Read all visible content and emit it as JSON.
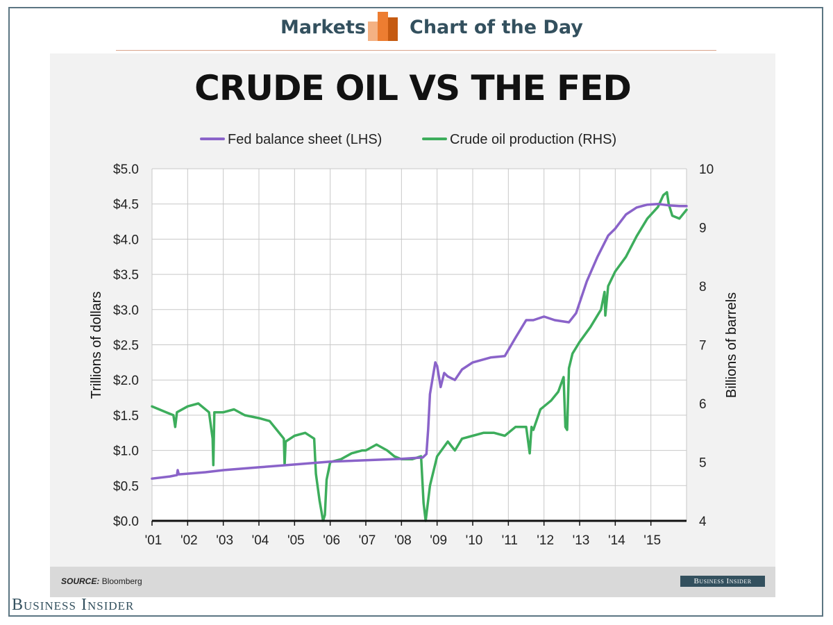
{
  "header": {
    "left_label": "Markets",
    "right_label": "Chart of the Day"
  },
  "footer": {
    "source_label": "SOURCE:",
    "source_text": "Bloomberg",
    "badge": "Business Insider",
    "brand": "Business Insider"
  },
  "colors": {
    "fed": "#8a63c9",
    "oil": "#3dad5c",
    "header_text": "#33505e",
    "logo_light": "#f4b183",
    "logo_mid": "#ed7d31",
    "logo_dark": "#c55a11"
  },
  "chart_data": {
    "type": "line",
    "title": "CRUDE OIL VS THE FED",
    "ylabel": "Trillions of dollars",
    "y2label": "Billions of barrels",
    "ylim": [
      0,
      5
    ],
    "y2lim": [
      4,
      10
    ],
    "xlim": [
      2001,
      2016
    ],
    "yticks": [
      "$0.0",
      "$0.5",
      "$1.0",
      "$1.5",
      "$2.0",
      "$2.5",
      "$3.0",
      "$3.5",
      "$4.0",
      "$4.5",
      "$5.0"
    ],
    "y2ticks": [
      "4",
      "5",
      "6",
      "7",
      "8",
      "9",
      "10"
    ],
    "xticks": [
      "'01",
      "'02",
      "'03",
      "'04",
      "'05",
      "'06",
      "'07",
      "'08",
      "'09",
      "'10",
      "'11",
      "'12",
      "'13",
      "'14",
      "'15"
    ],
    "grid": true,
    "legend_position": "top",
    "series": [
      {
        "name": "Fed balance sheet (LHS)",
        "axis": "left",
        "x": [
          2001.0,
          2001.5,
          2001.7,
          2001.72,
          2001.75,
          2002.0,
          2002.5,
          2003.0,
          2004.0,
          2005.0,
          2006.0,
          2007.0,
          2008.0,
          2008.6,
          2008.7,
          2008.75,
          2008.8,
          2008.9,
          2008.95,
          2009.0,
          2009.1,
          2009.2,
          2009.3,
          2009.5,
          2009.7,
          2010.0,
          2010.5,
          2010.9,
          2011.2,
          2011.5,
          2011.7,
          2012.0,
          2012.3,
          2012.7,
          2012.9,
          2013.2,
          2013.5,
          2013.8,
          2014.0,
          2014.3,
          2014.6,
          2014.9,
          2015.2,
          2015.5,
          2015.8,
          2016.0
        ],
        "values": [
          0.6,
          0.63,
          0.65,
          0.72,
          0.66,
          0.67,
          0.69,
          0.72,
          0.76,
          0.8,
          0.84,
          0.86,
          0.88,
          0.9,
          0.95,
          1.3,
          1.8,
          2.1,
          2.25,
          2.2,
          1.9,
          2.1,
          2.05,
          2.0,
          2.15,
          2.25,
          2.32,
          2.34,
          2.6,
          2.85,
          2.85,
          2.9,
          2.85,
          2.82,
          2.95,
          3.4,
          3.75,
          4.05,
          4.15,
          4.35,
          4.45,
          4.49,
          4.5,
          4.48,
          4.47,
          4.47
        ]
      },
      {
        "name": "Crude oil production (RHS)",
        "axis": "right",
        "x": [
          2001.0,
          2001.2,
          2001.4,
          2001.6,
          2001.65,
          2001.7,
          2002.0,
          2002.3,
          2002.6,
          2002.7,
          2002.72,
          2002.75,
          2003.0,
          2003.3,
          2003.6,
          2004.0,
          2004.3,
          2004.5,
          2004.7,
          2004.72,
          2004.75,
          2005.0,
          2005.3,
          2005.55,
          2005.6,
          2005.7,
          2005.8,
          2005.85,
          2005.9,
          2006.0,
          2006.3,
          2006.6,
          2006.9,
          2007.0,
          2007.3,
          2007.6,
          2007.8,
          2008.0,
          2008.3,
          2008.55,
          2008.62,
          2008.68,
          2008.8,
          2009.0,
          2009.3,
          2009.5,
          2009.7,
          2010.0,
          2010.3,
          2010.6,
          2010.9,
          2011.2,
          2011.5,
          2011.6,
          2011.65,
          2011.7,
          2011.9,
          2012.0,
          2012.2,
          2012.4,
          2012.55,
          2012.6,
          2012.65,
          2012.7,
          2012.8,
          2012.9,
          2013.0,
          2013.3,
          2013.6,
          2013.7,
          2013.72,
          2013.8,
          2014.0,
          2014.3,
          2014.6,
          2014.9,
          2015.2,
          2015.35,
          2015.45,
          2015.5,
          2015.6,
          2015.8,
          2016.0
        ],
        "values": [
          5.95,
          5.9,
          5.85,
          5.8,
          5.6,
          5.85,
          5.95,
          6.0,
          5.85,
          5.4,
          4.95,
          5.85,
          5.85,
          5.9,
          5.8,
          5.75,
          5.7,
          5.55,
          5.4,
          4.95,
          5.35,
          5.45,
          5.5,
          5.4,
          4.8,
          4.35,
          4.0,
          4.1,
          4.7,
          5.0,
          5.05,
          5.15,
          5.2,
          5.2,
          5.3,
          5.2,
          5.1,
          5.05,
          5.05,
          5.1,
          4.3,
          4.0,
          4.6,
          5.1,
          5.35,
          5.2,
          5.4,
          5.45,
          5.5,
          5.5,
          5.45,
          5.6,
          5.6,
          5.15,
          5.6,
          5.55,
          5.9,
          5.95,
          6.05,
          6.2,
          6.45,
          5.6,
          5.55,
          6.6,
          6.85,
          6.95,
          7.05,
          7.3,
          7.6,
          7.9,
          7.5,
          8.0,
          8.25,
          8.5,
          8.85,
          9.15,
          9.35,
          9.55,
          9.6,
          9.4,
          9.2,
          9.15,
          9.3
        ]
      }
    ]
  }
}
